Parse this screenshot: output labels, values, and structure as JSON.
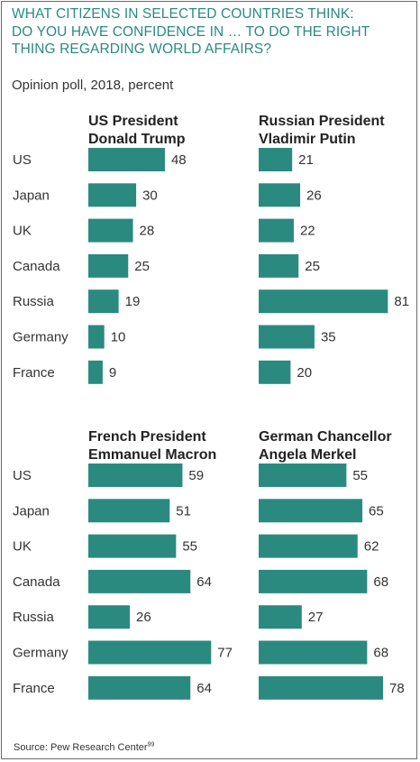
{
  "title_lines": [
    "WHAT CITIZENS IN SELECTED COUNTRIES THINK:",
    "DO YOU HAVE CONFIDENCE IN … TO DO THE RIGHT",
    "THING REGARDING WORLD AFFAIRS?"
  ],
  "subtitle": "Opinion poll, 2018, percent",
  "source": "Source: Pew Research Center",
  "source_note": "99",
  "colors": {
    "bar": "#2b8a80",
    "title": "#2b8a80",
    "text": "#333333"
  },
  "chart_data": [
    {
      "type": "bar",
      "title_lines": [
        "US President",
        "Donald Trump"
      ],
      "categories": [
        "US",
        "Japan",
        "UK",
        "Canada",
        "Russia",
        "Germany",
        "France"
      ],
      "values": [
        48,
        30,
        28,
        25,
        19,
        10,
        9
      ],
      "orientation": "horizontal"
    },
    {
      "type": "bar",
      "title_lines": [
        "Russian President",
        "Vladimir Putin"
      ],
      "categories": [
        "US",
        "Japan",
        "UK",
        "Canada",
        "Russia",
        "Germany",
        "France"
      ],
      "values": [
        21,
        26,
        22,
        25,
        81,
        35,
        20
      ],
      "orientation": "horizontal"
    },
    {
      "type": "bar",
      "title_lines": [
        "French President",
        "Emmanuel Macron"
      ],
      "categories": [
        "US",
        "Japan",
        "UK",
        "Canada",
        "Russia",
        "Germany",
        "France"
      ],
      "values": [
        59,
        51,
        55,
        64,
        26,
        77,
        64
      ],
      "orientation": "horizontal"
    },
    {
      "type": "bar",
      "title_lines": [
        "German Chancellor",
        "Angela Merkel"
      ],
      "categories": [
        "US",
        "Japan",
        "UK",
        "Canada",
        "Russia",
        "Germany",
        "France"
      ],
      "values": [
        55,
        65,
        62,
        68,
        27,
        68,
        78
      ],
      "orientation": "horizontal"
    }
  ]
}
